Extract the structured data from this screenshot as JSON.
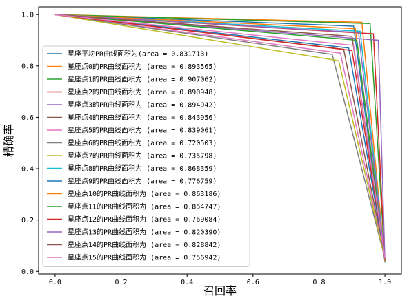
{
  "chart_data": {
    "type": "line",
    "title": "",
    "xlabel": "召回率",
    "ylabel": "精确率",
    "xlim": [
      -0.05,
      1.05
    ],
    "ylim": [
      -0.01,
      1.03
    ],
    "xticks": [
      "0.0",
      "0.2",
      "0.4",
      "0.6",
      "0.8",
      "1.0"
    ],
    "yticks": [
      "0.0",
      "0.2",
      "0.4",
      "0.6",
      "0.8",
      "1.0"
    ],
    "grid": false,
    "legend_position": "lower-left",
    "series": [
      {
        "name": "星座平均PR曲线面积为(area = 0.831713)",
        "color": "#1f77b4",
        "points": [
          [
            0,
            1
          ],
          [
            0.905,
            0.955
          ],
          [
            1.0,
            0.035
          ]
        ]
      },
      {
        "name": "星座点0的PR曲线面积为 (area = 0.893565)",
        "color": "#ff7f0e",
        "points": [
          [
            0,
            1
          ],
          [
            0.93,
            0.97
          ],
          [
            1.0,
            0.04
          ]
        ]
      },
      {
        "name": "星座点1的PR曲线面积为 (area = 0.907062)",
        "color": "#2ca02c",
        "points": [
          [
            0,
            1
          ],
          [
            0.955,
            0.965
          ],
          [
            1.0,
            0.04
          ]
        ]
      },
      {
        "name": "星座点2的PR曲线面积为 (area = 0.890948)",
        "color": "#d62728",
        "points": [
          [
            0,
            1
          ],
          [
            0.965,
            0.925
          ],
          [
            1.0,
            0.04
          ]
        ]
      },
      {
        "name": "星座点3的PR曲线面积为 (area = 0.894942)",
        "color": "#9467bd",
        "points": [
          [
            0,
            1
          ],
          [
            0.98,
            0.9
          ],
          [
            1.0,
            0.04
          ]
        ]
      },
      {
        "name": "星座点4的PR曲线面积为 (area = 0.843956)",
        "color": "#8c564b",
        "points": [
          [
            0,
            1
          ],
          [
            0.875,
            0.865
          ],
          [
            1.0,
            0.05
          ]
        ]
      },
      {
        "name": "星座点5的PR曲线面积为 (area = 0.839061)",
        "color": "#e377c2",
        "points": [
          [
            0,
            1
          ],
          [
            0.865,
            0.85
          ],
          [
            1.0,
            0.05
          ]
        ]
      },
      {
        "name": "星座点6的PR曲线面积为 (area = 0.720503)",
        "color": "#7f7f7f",
        "points": [
          [
            0,
            1
          ],
          [
            0.84,
            0.845
          ],
          [
            1.0,
            0.05
          ]
        ]
      },
      {
        "name": "星座点7的PR曲线面积为 (area = 0.735798)",
        "color": "#bcbd22",
        "points": [
          [
            0,
            1
          ],
          [
            0.86,
            0.82
          ],
          [
            1.0,
            0.05
          ]
        ]
      },
      {
        "name": "星座点8的PR曲线面积为 (area = 0.868359)",
        "color": "#17becf",
        "points": [
          [
            0,
            1
          ],
          [
            0.925,
            0.935
          ],
          [
            1.0,
            0.04
          ]
        ]
      },
      {
        "name": "星座点9的PR曲线面积为 (area = 0.776759)",
        "color": "#1f77b4",
        "points": [
          [
            0,
            1
          ],
          [
            0.89,
            0.87
          ],
          [
            1.0,
            0.05
          ]
        ]
      },
      {
        "name": "星座点10的PR曲线面积为 (area = 0.863186)",
        "color": "#ff7f0e",
        "points": [
          [
            0,
            1
          ],
          [
            0.91,
            0.945
          ],
          [
            1.0,
            0.04
          ]
        ]
      },
      {
        "name": "星座点11的PR曲线面积为 (area = 0.854747)",
        "color": "#2ca02c",
        "points": [
          [
            0,
            1
          ],
          [
            0.915,
            0.9
          ],
          [
            1.0,
            0.045
          ]
        ]
      },
      {
        "name": "星座点12的PR曲线面积为 (area = 0.769084)",
        "color": "#d62728",
        "points": [
          [
            0,
            1
          ],
          [
            0.9,
            0.86
          ],
          [
            1.0,
            0.05
          ]
        ]
      },
      {
        "name": "星座点13的PR曲线面积为 (area = 0.820390)",
        "color": "#9467bd",
        "points": [
          [
            0,
            1
          ],
          [
            0.92,
            0.93
          ],
          [
            1.0,
            0.045
          ]
        ]
      },
      {
        "name": "星座点14的PR曲线面积为 (area = 0.828842)",
        "color": "#8c564b",
        "points": [
          [
            0,
            1
          ],
          [
            0.9,
            0.915
          ],
          [
            1.0,
            0.045
          ]
        ]
      },
      {
        "name": "星座点15的PR曲线面积为 (area = 0.756942)",
        "color": "#e377c2",
        "points": [
          [
            0,
            1
          ],
          [
            0.905,
            0.88
          ],
          [
            1.0,
            0.05
          ]
        ]
      }
    ]
  }
}
